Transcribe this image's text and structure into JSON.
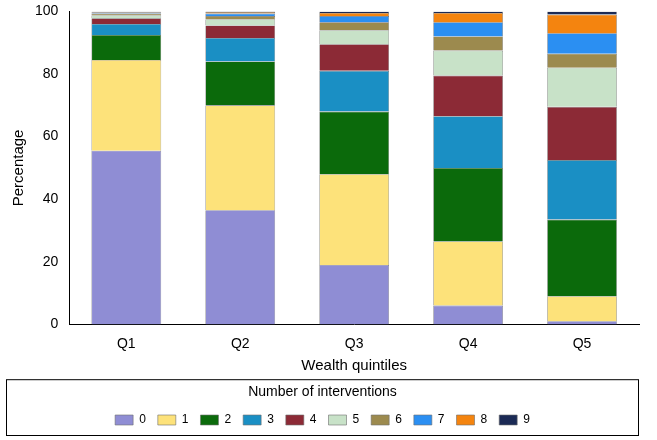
{
  "chart_data": {
    "type": "bar",
    "stacked": true,
    "x_label": "Wealth quintiles",
    "y_label": "Percentage",
    "categories": [
      "Q1",
      "Q2",
      "Q3",
      "Q4",
      "Q5"
    ],
    "series": [
      {
        "name": "0",
        "color": "#8f8dd4",
        "values": [
          55.5,
          36.5,
          19,
          6,
          1
        ]
      },
      {
        "name": "1",
        "color": "#fde27a",
        "values": [
          29,
          33.5,
          29,
          20.5,
          8
        ]
      },
      {
        "name": "2",
        "color": "#0b6a0b",
        "values": [
          8,
          14,
          20,
          23.5,
          24.5
        ]
      },
      {
        "name": "3",
        "color": "#1a8fc4",
        "values": [
          3.5,
          7.5,
          13,
          16.5,
          19
        ]
      },
      {
        "name": "4",
        "color": "#8c2a36",
        "values": [
          1.8,
          4,
          8.5,
          13,
          17
        ]
      },
      {
        "name": "5",
        "color": "#c8e2c8",
        "values": [
          1,
          2,
          4.5,
          8,
          12.5
        ]
      },
      {
        "name": "6",
        "color": "#9c8a4e",
        "values": [
          0.5,
          1,
          2.5,
          4.5,
          4.5
        ]
      },
      {
        "name": "7",
        "color": "#2b8ff2",
        "values": [
          0.4,
          0.8,
          2,
          4.5,
          6.5
        ]
      },
      {
        "name": "8",
        "color": "#f4840f",
        "values": [
          0.2,
          0.5,
          1,
          3,
          6
        ]
      },
      {
        "name": "9",
        "color": "#1b2a55",
        "values": [
          0.1,
          0.2,
          0.5,
          0.5,
          1
        ]
      }
    ],
    "ylim": [
      0,
      100
    ],
    "yticks": [
      0,
      20,
      40,
      60,
      80,
      100
    ],
    "grid": false,
    "legend": "bottom",
    "legend_title": "Number of interventions"
  }
}
